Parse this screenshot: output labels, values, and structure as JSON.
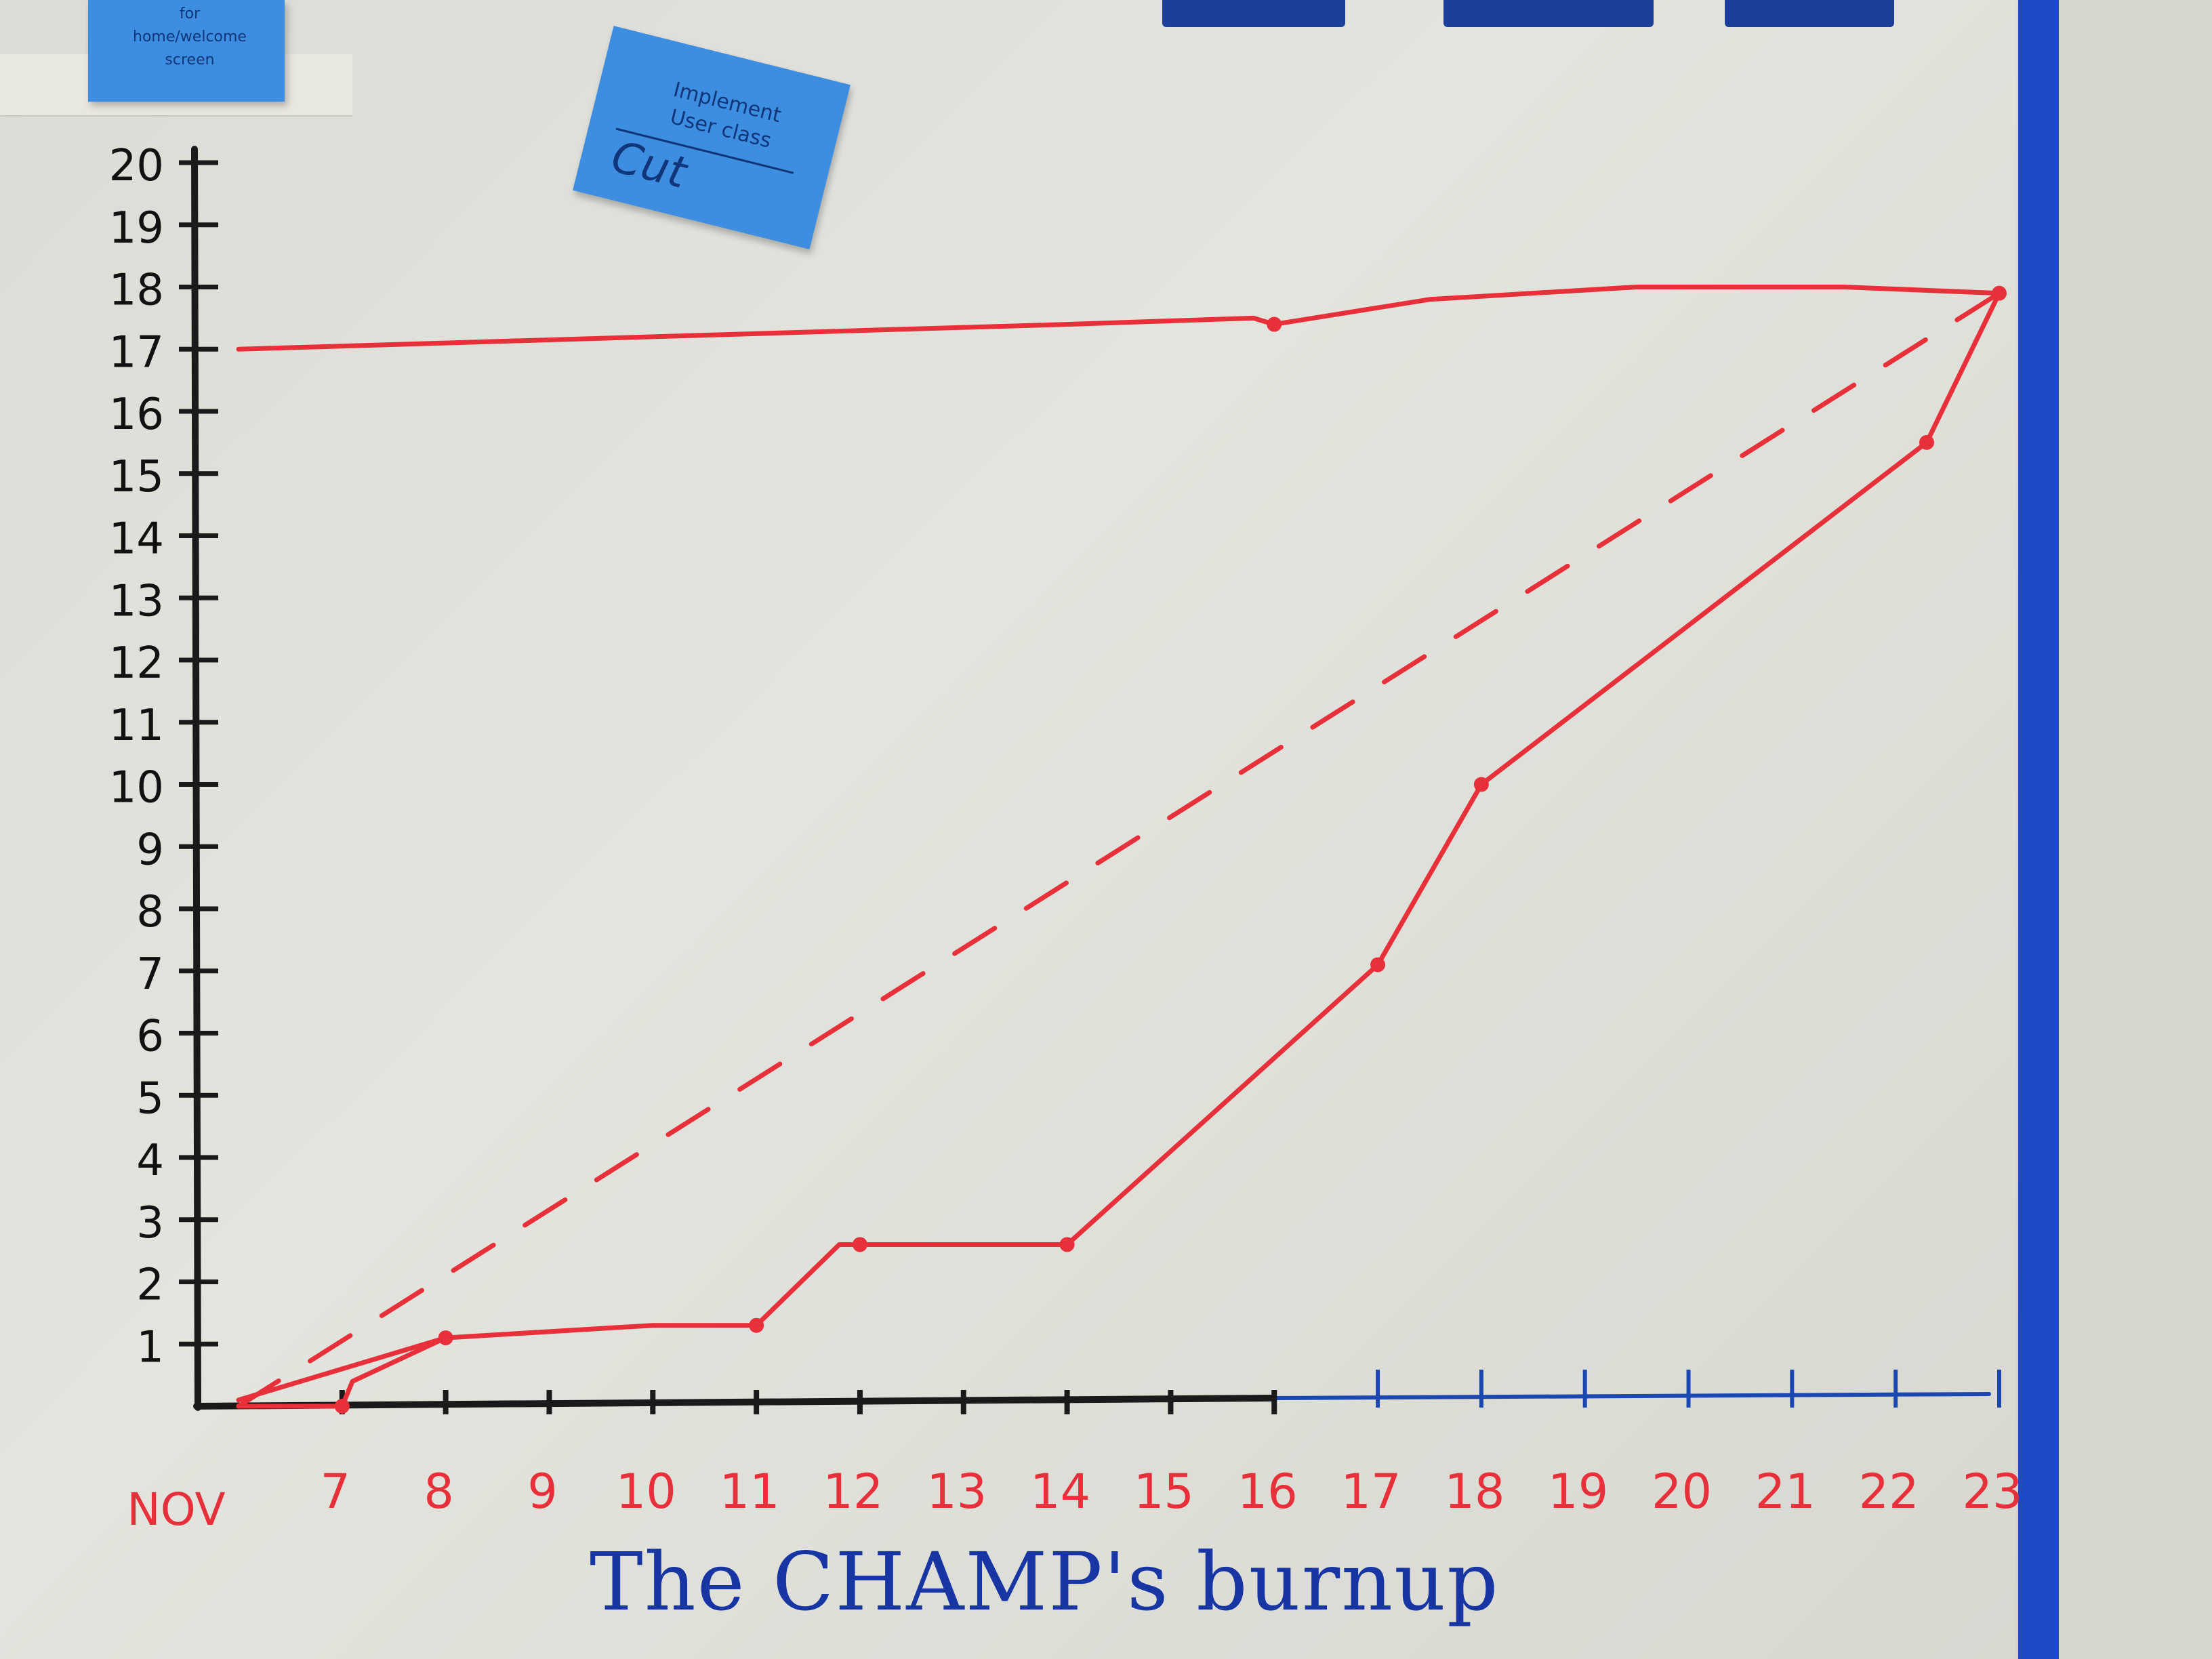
{
  "title": "The CHAMP's burnup",
  "sticky_notes": [
    {
      "lines": [
        "for",
        "home/welcome",
        "screen"
      ]
    },
    {
      "lines": [
        "Implement",
        "User class"
      ],
      "main": "Cut"
    }
  ],
  "chart_data": {
    "type": "line",
    "title": "The CHAMP's burnup",
    "xlabel": "",
    "ylabel": "",
    "x_prefix": "NOV",
    "x": [
      6,
      7,
      8,
      9,
      10,
      11,
      12,
      13,
      14,
      15,
      16,
      17,
      18,
      19,
      20,
      21,
      22,
      23
    ],
    "x_tick_labels": [
      "7",
      "8",
      "9",
      "10",
      "11",
      "12",
      "13",
      "14",
      "15",
      "16",
      "17",
      "18",
      "19",
      "20",
      "21",
      "22",
      "23"
    ],
    "y_ticks": [
      1,
      2,
      3,
      4,
      5,
      6,
      7,
      8,
      9,
      10,
      11,
      12,
      13,
      14,
      15,
      16,
      17,
      18,
      19,
      20
    ],
    "ylim": [
      0,
      20
    ],
    "xlim": [
      6,
      23
    ],
    "grid": false,
    "legend": "none",
    "series": [
      {
        "kind": "scope",
        "style": "solid",
        "color": "#e8303a",
        "points": [
          [
            6,
            17.0
          ],
          [
            8,
            17.1
          ],
          [
            10,
            17.2
          ],
          [
            12,
            17.3
          ],
          [
            14,
            17.4
          ],
          [
            15.8,
            17.5
          ],
          [
            16,
            17.4
          ],
          [
            17.5,
            17.8
          ],
          [
            19.5,
            18.0
          ],
          [
            21.5,
            18.0
          ],
          [
            23,
            17.9
          ]
        ]
      },
      {
        "kind": "ideal",
        "style": "dashed",
        "color": "#e8303a",
        "points": [
          [
            6,
            0
          ],
          [
            23,
            17.9
          ]
        ]
      },
      {
        "kind": "completed",
        "style": "solid",
        "color": "#e8303a",
        "points": [
          [
            6,
            0
          ],
          [
            7,
            0
          ],
          [
            7.1,
            0.4
          ],
          [
            8,
            1.1
          ],
          [
            10,
            1.3
          ],
          [
            11,
            1.3
          ],
          [
            11.8,
            2.6
          ],
          [
            14,
            2.6
          ],
          [
            17,
            7.1
          ],
          [
            18,
            10.0
          ],
          [
            22.3,
            15.5
          ],
          [
            23,
            17.9
          ]
        ]
      },
      {
        "kind": "completed-alt",
        "style": "solid",
        "color": "#e8303a",
        "points": [
          [
            6,
            0.1
          ],
          [
            8,
            1.1
          ]
        ]
      }
    ],
    "markers": [
      [
        7,
        0
      ],
      [
        8,
        1.1
      ],
      [
        11,
        1.3
      ],
      [
        12,
        2.6
      ],
      [
        14,
        2.6
      ],
      [
        16,
        17.4
      ],
      [
        17,
        7.1
      ],
      [
        18,
        10.0
      ],
      [
        22.3,
        15.5
      ],
      [
        23,
        17.9
      ]
    ]
  },
  "colors": {
    "axis": "#1a1a1a",
    "future_axis": "#1b48b0",
    "ink_red": "#e8303a",
    "title_blue": "#1736a3",
    "tape_blue": "#1f49c7",
    "sticky_blue": "#3d8ee0"
  }
}
